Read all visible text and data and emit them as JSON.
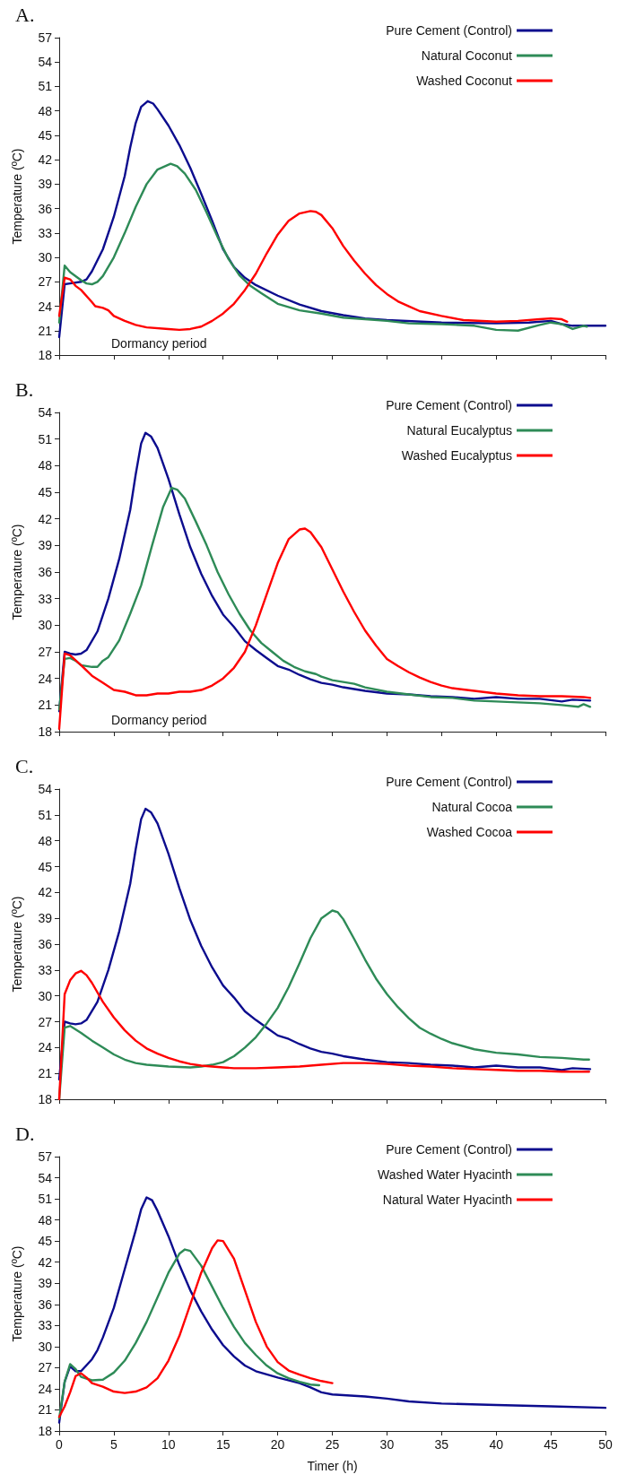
{
  "chart_data": [
    {
      "type": "line",
      "title": "A.",
      "ylabel": "Temperature (ºC)",
      "xlim": [
        0,
        50
      ],
      "xticks": [
        0,
        5,
        10,
        15,
        20,
        25,
        30,
        35,
        40,
        45,
        50
      ],
      "ylim": [
        18,
        57
      ],
      "yticks": [
        18,
        21,
        24,
        27,
        30,
        33,
        36,
        39,
        42,
        45,
        48,
        51,
        54,
        57
      ],
      "tick_labels": "y",
      "grid": false,
      "legend": "top right",
      "marker": "none",
      "line_style": "solid",
      "annotations": [
        "Dormancy period"
      ],
      "series": [
        {
          "name": "Pure Cement (Control)",
          "color": "#0c0c8e",
          "x": [
            0,
            0.5,
            1,
            2,
            2.5,
            3,
            4,
            5,
            6,
            6.5,
            7,
            7.5,
            8.1,
            8.6,
            9,
            10,
            11,
            12,
            13,
            14,
            15,
            16,
            17,
            18,
            20,
            22,
            24,
            26,
            28,
            30,
            35,
            40,
            43,
            45,
            46,
            47,
            50
          ],
          "values": [
            20.2,
            26.7,
            26.8,
            27.0,
            27.3,
            28.3,
            31,
            35,
            40,
            43.5,
            46.5,
            48.5,
            49.2,
            48.9,
            48.2,
            46.2,
            43.8,
            41,
            37.8,
            34.5,
            31,
            28.8,
            27.5,
            26.6,
            25.3,
            24.2,
            23.4,
            22.9,
            22.5,
            22.3,
            22.0,
            21.9,
            22.0,
            22.2,
            21.8,
            21.6,
            21.6
          ]
        },
        {
          "name": "Natural Coconut",
          "color": "#2e8b57",
          "x": [
            0,
            0.5,
            1,
            2,
            2.5,
            3,
            3.5,
            4,
            5,
            6,
            7,
            8,
            9,
            10.2,
            10.8,
            11.5,
            12.5,
            13.5,
            14.5,
            15.5,
            16.5,
            17.5,
            18.5,
            20,
            22,
            24,
            26,
            28,
            30,
            32,
            35,
            38,
            40,
            42,
            44,
            45,
            46,
            47,
            48,
            48.3
          ],
          "values": [
            22,
            29,
            28.2,
            27.2,
            26.8,
            26.7,
            27,
            27.7,
            30,
            33,
            36.2,
            39,
            40.8,
            41.5,
            41.2,
            40.3,
            38.3,
            35.5,
            32.5,
            29.8,
            27.8,
            26.5,
            25.6,
            24.3,
            23.5,
            23.1,
            22.6,
            22.4,
            22.2,
            21.9,
            21.8,
            21.6,
            21.1,
            21.0,
            21.7,
            22.0,
            21.8,
            21.2,
            21.6,
            21.5
          ]
        },
        {
          "name": "Washed Coconut",
          "color": "#ff0000",
          "x": [
            0,
            0.5,
            1,
            1.5,
            2,
            3,
            3.3,
            4,
            4.5,
            5,
            6,
            7,
            8,
            10,
            11,
            12,
            13,
            14,
            15,
            16,
            17,
            18,
            19,
            20,
            21,
            22,
            23,
            23.5,
            24,
            25,
            26,
            27,
            28,
            29,
            30,
            31,
            32,
            33,
            35,
            37,
            40,
            42,
            44,
            45,
            46,
            46.5
          ],
          "values": [
            22.8,
            27.5,
            27.3,
            26.5,
            26,
            24.5,
            24,
            23.8,
            23.5,
            22.8,
            22.2,
            21.7,
            21.4,
            21.2,
            21.1,
            21.2,
            21.5,
            22.2,
            23.1,
            24.3,
            26,
            28,
            30.5,
            32.8,
            34.5,
            35.4,
            35.7,
            35.6,
            35.2,
            33.6,
            31.4,
            29.6,
            28,
            26.6,
            25.5,
            24.6,
            24,
            23.4,
            22.8,
            22.3,
            22.1,
            22.2,
            22.4,
            22.5,
            22.4,
            22.1
          ]
        }
      ]
    },
    {
      "type": "line",
      "title": "B.",
      "ylabel": "Temperature (ºC)",
      "xlim": [
        0,
        50
      ],
      "xticks": [
        0,
        5,
        10,
        15,
        20,
        25,
        30,
        35,
        40,
        45,
        50
      ],
      "ylim": [
        18,
        54
      ],
      "yticks": [
        18,
        21,
        24,
        27,
        30,
        33,
        36,
        39,
        42,
        45,
        48,
        51,
        54
      ],
      "tick_labels": "y",
      "grid": false,
      "legend": "top right",
      "marker": "none",
      "line_style": "solid",
      "annotations": [
        "Dormancy period"
      ],
      "series": [
        {
          "name": "Pure Cement (Control)",
          "color": "#0c0c8e",
          "x": [
            0,
            0.5,
            1,
            1.5,
            2,
            2.5,
            3.5,
            4.5,
            5.5,
            6.5,
            7,
            7.5,
            7.9,
            8.4,
            9,
            10,
            11,
            12,
            13,
            14,
            15,
            16,
            17,
            18,
            19,
            20,
            21,
            22,
            23,
            24,
            25,
            26,
            28,
            30,
            32,
            34,
            36,
            38,
            40,
            42,
            44,
            46,
            47,
            48.6
          ],
          "values": [
            20.3,
            27,
            26.8,
            26.7,
            26.8,
            27.2,
            29.3,
            33,
            37.5,
            43,
            47,
            50.5,
            51.7,
            51.3,
            50,
            46.5,
            42.5,
            38.8,
            35.8,
            33.3,
            31.2,
            29.8,
            28.2,
            27.2,
            26.3,
            25.4,
            25,
            24.4,
            23.9,
            23.5,
            23.3,
            23,
            22.6,
            22.3,
            22.2,
            22,
            21.9,
            21.7,
            21.9,
            21.7,
            21.7,
            21.4,
            21.6,
            21.5
          ]
        },
        {
          "name": "Natural Eucalyptus",
          "color": "#2e8b57",
          "x": [
            0,
            0.5,
            1,
            1.5,
            2,
            3,
            3.5,
            4,
            4.5,
            5.5,
            6.5,
            7.5,
            8.5,
            9.5,
            10.3,
            10.8,
            11.5,
            12.5,
            13.5,
            14.5,
            15.5,
            16.5,
            17.5,
            18.5,
            19.5,
            20.5,
            21.5,
            22.5,
            23.5,
            24,
            25,
            27,
            28,
            30,
            32,
            34,
            36,
            38,
            40,
            42,
            44,
            46,
            47.5,
            48,
            48.6
          ],
          "values": [
            20.5,
            26.2,
            26.3,
            26,
            25.5,
            25.3,
            25.3,
            26,
            26.4,
            28.3,
            31.3,
            34.5,
            39,
            43.3,
            45.5,
            45.3,
            44.3,
            41.7,
            39,
            36,
            33.5,
            31.3,
            29.4,
            28,
            27,
            26,
            25.3,
            24.8,
            24.5,
            24.2,
            23.8,
            23.4,
            23,
            22.5,
            22.2,
            21.9,
            21.8,
            21.5,
            21.4,
            21.3,
            21.2,
            21,
            20.8,
            21.1,
            20.8
          ]
        },
        {
          "name": "Washed Eucalyptus",
          "color": "#ff0000",
          "x": [
            0,
            0.5,
            1,
            2,
            3,
            4,
            5,
            6,
            7,
            8,
            9,
            10,
            11,
            12,
            13,
            14,
            15,
            16,
            17,
            18,
            19,
            20,
            21,
            22,
            22.5,
            23,
            24,
            25,
            26,
            27,
            28,
            29,
            30,
            31,
            32,
            33,
            34,
            35,
            36,
            38,
            40,
            42,
            44,
            46,
            48,
            48.6
          ],
          "values": [
            18.3,
            26.8,
            26.6,
            25.5,
            24.3,
            23.5,
            22.7,
            22.5,
            22.1,
            22.1,
            22.3,
            22.3,
            22.5,
            22.5,
            22.7,
            23.2,
            24,
            25.2,
            27,
            30,
            33.5,
            37,
            39.7,
            40.8,
            40.9,
            40.5,
            38.8,
            36.3,
            33.8,
            31.5,
            29.4,
            27.7,
            26.2,
            25.4,
            24.7,
            24.1,
            23.6,
            23.2,
            22.9,
            22.6,
            22.3,
            22.1,
            22,
            22,
            21.9,
            21.8
          ]
        }
      ]
    },
    {
      "type": "line",
      "title": "C.",
      "ylabel": "Temperature (ºC)",
      "xlim": [
        0,
        50
      ],
      "xticks": [
        0,
        5,
        10,
        15,
        20,
        25,
        30,
        35,
        40,
        45,
        50
      ],
      "ylim": [
        18,
        54
      ],
      "yticks": [
        18,
        21,
        24,
        27,
        30,
        33,
        36,
        39,
        42,
        45,
        48,
        51,
        54
      ],
      "tick_labels": "y",
      "grid": false,
      "legend": "top right",
      "marker": "none",
      "line_style": "solid",
      "series": [
        {
          "name": "Pure Cement (Control)",
          "color": "#0c0c8e",
          "x": [
            0,
            0.5,
            1,
            1.5,
            2,
            2.5,
            3.5,
            4.5,
            5.5,
            6.5,
            7,
            7.5,
            7.9,
            8.4,
            9,
            10,
            11,
            12,
            13,
            14,
            15,
            16,
            17,
            18,
            19,
            20,
            21,
            22,
            23,
            24,
            25,
            26,
            28,
            30,
            32,
            34,
            36,
            38,
            40,
            42,
            44,
            46,
            47,
            48.6
          ],
          "values": [
            20.3,
            27,
            26.8,
            26.7,
            26.8,
            27.2,
            29.3,
            33,
            37.5,
            43,
            47,
            50.5,
            51.7,
            51.3,
            50,
            46.5,
            42.5,
            38.8,
            35.8,
            33.3,
            31.2,
            29.8,
            28.2,
            27.2,
            26.3,
            25.4,
            25,
            24.4,
            23.9,
            23.5,
            23.3,
            23,
            22.6,
            22.3,
            22.2,
            22,
            21.9,
            21.7,
            21.9,
            21.7,
            21.7,
            21.4,
            21.6,
            21.5
          ]
        },
        {
          "name": "Natural Cocoa",
          "color": "#2e8b57",
          "x": [
            0,
            0.5,
            1,
            2,
            3,
            4,
            5,
            6,
            7,
            8,
            9,
            10,
            12,
            13,
            14,
            15,
            16,
            17,
            18,
            19,
            20,
            21,
            22,
            23,
            24,
            25,
            25.5,
            26,
            27,
            28,
            29,
            30,
            31,
            32,
            33,
            34,
            35,
            36,
            38,
            40,
            42,
            44,
            46,
            48,
            48.5
          ],
          "values": [
            18,
            26.3,
            26.5,
            25.7,
            24.8,
            24,
            23.2,
            22.6,
            22.2,
            22,
            21.9,
            21.8,
            21.7,
            21.8,
            22,
            22.3,
            23,
            24,
            25.2,
            26.8,
            28.6,
            31,
            33.8,
            36.7,
            39,
            39.9,
            39.7,
            38.9,
            36.6,
            34.2,
            32,
            30.2,
            28.7,
            27.4,
            26.3,
            25.6,
            25,
            24.5,
            23.8,
            23.4,
            23.2,
            22.9,
            22.8,
            22.6,
            22.6
          ]
        },
        {
          "name": "Washed Cocoa",
          "color": "#ff0000",
          "x": [
            0,
            0.5,
            1,
            1.5,
            2,
            2.5,
            3,
            4,
            5,
            6,
            7,
            8,
            9,
            10,
            11,
            12,
            13,
            14,
            15,
            16,
            18,
            20,
            22,
            24,
            26,
            28,
            30,
            32,
            34,
            36,
            38,
            40,
            42,
            44,
            46,
            48.5
          ],
          "values": [
            18,
            30.2,
            31.8,
            32.6,
            32.9,
            32.4,
            31.5,
            29.3,
            27.5,
            26,
            24.8,
            23.9,
            23.3,
            22.8,
            22.4,
            22.1,
            21.9,
            21.8,
            21.7,
            21.6,
            21.6,
            21.7,
            21.8,
            22,
            22.2,
            22.2,
            22.1,
            21.9,
            21.8,
            21.6,
            21.5,
            21.4,
            21.3,
            21.3,
            21.2,
            21.2
          ]
        }
      ]
    },
    {
      "type": "line",
      "title": "D.",
      "xlabel": "Timer (h)",
      "ylabel": "Temperature (ºC)",
      "xlim": [
        0,
        50
      ],
      "xticks": [
        0,
        5,
        10,
        15,
        20,
        25,
        30,
        35,
        40,
        45,
        50
      ],
      "ylim": [
        18,
        57
      ],
      "yticks": [
        18,
        21,
        24,
        27,
        30,
        33,
        36,
        39,
        42,
        45,
        48,
        51,
        54,
        57
      ],
      "grid": false,
      "legend": "top right",
      "marker": "none",
      "line_style": "solid",
      "series": [
        {
          "name": "Pure Cement (Control)",
          "color": "#0c0c8e",
          "x": [
            0,
            0.5,
            1,
            1.5,
            2,
            3,
            3.5,
            4,
            5,
            6,
            7,
            7.5,
            8,
            8.5,
            9,
            10,
            11,
            12,
            13,
            14,
            15,
            16,
            17,
            18,
            20,
            22,
            23,
            24,
            25,
            28,
            30,
            32,
            35,
            40,
            45,
            50
          ],
          "values": [
            19.2,
            25,
            27.2,
            26.5,
            26.5,
            28.2,
            29.5,
            31.3,
            35.5,
            41,
            46.5,
            49.5,
            51.2,
            50.8,
            49.3,
            45.7,
            41.6,
            38,
            35,
            32.4,
            30.2,
            28.6,
            27.3,
            26.5,
            25.6,
            24.8,
            24.2,
            23.5,
            23.2,
            22.9,
            22.6,
            22.2,
            21.9,
            21.7,
            21.5,
            21.3
          ]
        },
        {
          "name": "Washed Water Hyacinth",
          "color": "#2e8b57",
          "x": [
            0,
            0.5,
            1,
            1.5,
            2,
            3,
            4,
            5,
            6,
            7,
            8,
            9,
            10,
            11,
            11.5,
            12,
            13,
            14,
            15,
            16,
            17,
            18,
            19,
            20,
            21,
            22,
            23,
            23.8
          ],
          "values": [
            19.8,
            25,
            27.5,
            26.8,
            25.7,
            25.2,
            25.3,
            26.3,
            28,
            30.5,
            33.5,
            37,
            40.5,
            43.2,
            43.8,
            43.6,
            41.5,
            38.5,
            35.5,
            32.8,
            30.5,
            28.8,
            27.3,
            26.2,
            25.5,
            25,
            24.6,
            24.5
          ]
        },
        {
          "name": "Natural Water Hyacinth",
          "color": "#ff0000",
          "x": [
            0,
            0.5,
            1,
            1.5,
            2,
            2.5,
            3,
            4,
            5,
            6,
            7,
            8,
            9,
            10,
            11,
            12,
            13,
            14,
            14.5,
            15,
            16,
            17,
            18,
            19,
            20,
            21,
            22,
            23,
            24,
            25
          ],
          "values": [
            20,
            21.5,
            23.5,
            25.8,
            26.2,
            25.6,
            24.8,
            24.3,
            23.6,
            23.4,
            23.6,
            24.2,
            25.5,
            28,
            31.5,
            36,
            40.5,
            44,
            45.1,
            45,
            42.5,
            38,
            33.5,
            30,
            27.8,
            26.6,
            26,
            25.5,
            25.1,
            24.8
          ]
        }
      ]
    }
  ]
}
